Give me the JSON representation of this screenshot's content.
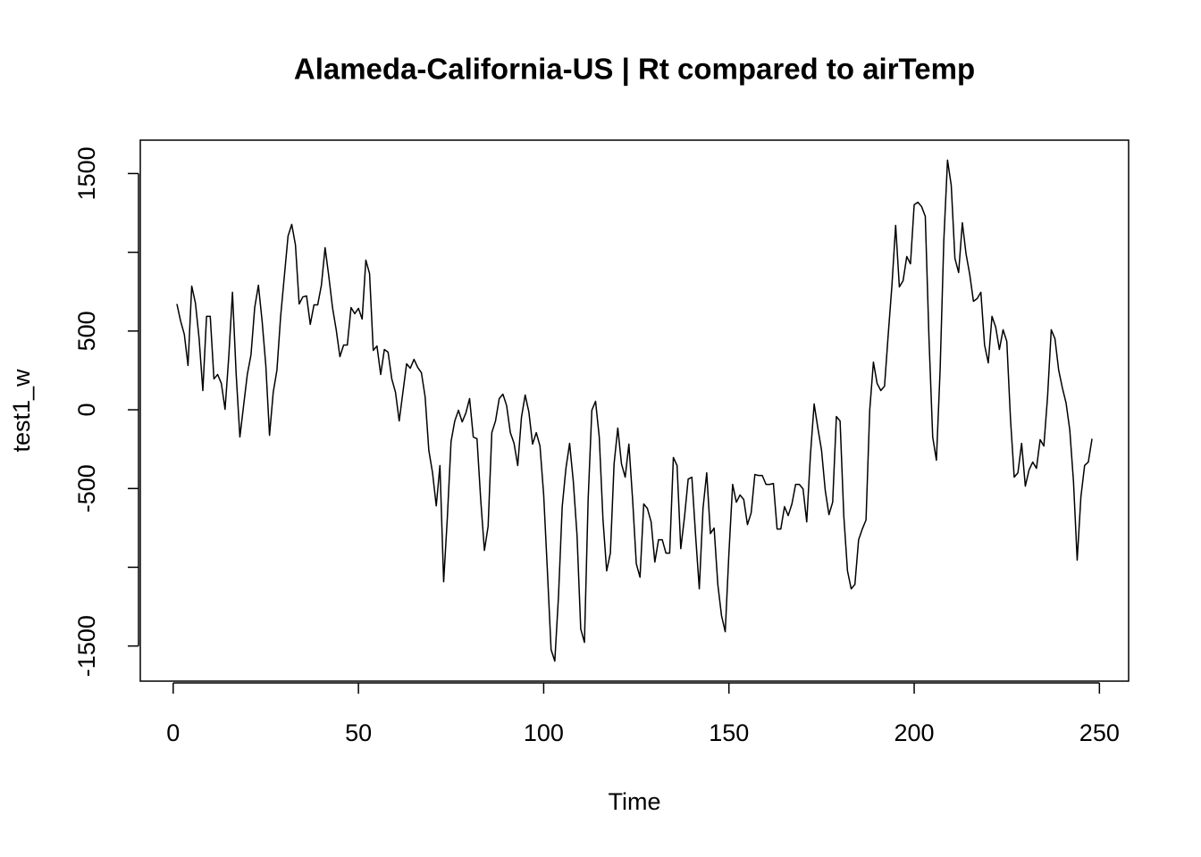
{
  "chart_data": {
    "type": "line",
    "title": "Alameda-California-US | Rt compared to airTemp",
    "x_label": "Time",
    "y_label": "test1_w",
    "xlim": [
      -8.88,
      257.88
    ],
    "ylim": [
      -1723,
      1712
    ],
    "xticks": [
      0,
      50,
      100,
      150,
      200,
      250
    ],
    "yticks": [
      -1500,
      {
        "value": -1000,
        "label": null
      },
      -500,
      0,
      500,
      {
        "value": 1000,
        "label": null
      },
      1500
    ],
    "grid": false,
    "series": [
      {
        "name": "test1_w",
        "color": "#000000",
        "x": [
          1,
          2,
          3,
          4,
          5,
          6,
          7,
          8,
          9,
          10,
          11,
          12,
          13,
          14,
          15,
          16,
          17,
          18,
          19,
          20,
          21,
          22,
          23,
          24,
          25,
          26,
          27,
          28,
          29,
          30,
          31,
          32,
          33,
          34,
          35,
          36,
          37,
          38,
          39,
          40,
          41,
          42,
          43,
          44,
          45,
          46,
          47,
          48,
          49,
          50,
          51,
          52,
          53,
          54,
          55,
          56,
          57,
          58,
          59,
          60,
          61,
          62,
          63,
          64,
          65,
          66,
          67,
          68,
          69,
          70,
          71,
          72,
          73,
          74,
          75,
          76,
          77,
          78,
          79,
          80,
          81,
          82,
          83,
          84,
          85,
          86,
          87,
          88,
          89,
          90,
          91,
          92,
          93,
          94,
          95,
          96,
          97,
          98,
          99,
          100,
          101,
          102,
          103,
          104,
          105,
          106,
          107,
          108,
          109,
          110,
          111,
          112,
          113,
          114,
          115,
          116,
          117,
          118,
          119,
          120,
          121,
          122,
          123,
          124,
          125,
          126,
          127,
          128,
          129,
          130,
          131,
          132,
          133,
          134,
          135,
          136,
          137,
          138,
          139,
          140,
          141,
          142,
          143,
          144,
          145,
          146,
          147,
          148,
          149,
          150,
          151,
          152,
          153,
          154,
          155,
          156,
          157,
          158,
          159,
          160,
          161,
          162,
          163,
          164,
          165,
          166,
          167,
          168,
          169,
          170,
          171,
          172,
          173,
          174,
          175,
          176,
          177,
          178,
          179,
          180,
          181,
          182,
          183,
          184,
          185,
          186,
          187,
          188,
          189,
          190,
          191,
          192,
          193,
          194,
          195,
          196,
          197,
          198,
          199,
          200,
          201,
          202,
          203,
          204,
          205,
          206,
          207,
          208,
          209,
          210,
          211,
          212,
          213,
          214,
          215,
          216,
          217,
          218,
          219,
          220,
          221,
          222,
          223,
          224,
          225,
          226,
          227,
          228,
          229,
          230,
          231,
          232,
          233,
          234,
          235,
          236,
          237,
          238,
          239,
          240,
          241,
          242,
          243,
          244,
          245,
          246,
          247,
          248
        ],
        "values": [
          672,
          564,
          479,
          281,
          785,
          678,
          451,
          122,
          593,
          593,
          196,
          224,
          167,
          3,
          337,
          746,
          224,
          -173,
          26,
          224,
          349,
          649,
          791,
          564,
          281,
          -162,
          111,
          252,
          593,
          848,
          1103,
          1177,
          1046,
          672,
          717,
          723,
          542,
          666,
          666,
          791,
          1029,
          848,
          649,
          508,
          337,
          411,
          411,
          649,
          610,
          644,
          576,
          950,
          865,
          377,
          405,
          224,
          383,
          366,
          196,
          111,
          -71,
          111,
          292,
          264,
          320,
          269,
          235,
          82,
          -258,
          -400,
          -610,
          -354,
          -1092,
          -683,
          -201,
          -71,
          -3,
          -77,
          -20,
          71,
          -173,
          -184,
          -570,
          -893,
          -740,
          -145,
          -71,
          71,
          99,
          26,
          -145,
          -213,
          -354,
          -48,
          94,
          -14,
          -218,
          -145,
          -230,
          -541,
          -1023,
          -1523,
          -1596,
          -1182,
          -615,
          -372,
          -213,
          -456,
          -797,
          -1392,
          -1477,
          -570,
          -3,
          54,
          -173,
          -695,
          -1023,
          -910,
          -343,
          -116,
          -343,
          -428,
          -218,
          -570,
          -978,
          -1063,
          -598,
          -627,
          -712,
          -967,
          -825,
          -825,
          -910,
          -910,
          -303,
          -354,
          -882,
          -683,
          -440,
          -428,
          -797,
          -1137,
          -627,
          -400,
          -786,
          -751,
          -1109,
          -1307,
          -1409,
          -910,
          -474,
          -587,
          -541,
          -570,
          -729,
          -655,
          -411,
          -417,
          -417,
          -474,
          -474,
          -468,
          -757,
          -757,
          -615,
          -672,
          -598,
          -474,
          -474,
          -502,
          -712,
          -286,
          37,
          -116,
          -258,
          -513,
          -666,
          -587,
          -43,
          -71,
          -672,
          -1023,
          -1137,
          -1109,
          -825,
          -757,
          -700,
          -3,
          303,
          167,
          122,
          150,
          479,
          791,
          1171,
          780,
          819,
          973,
          927,
          1302,
          1318,
          1290,
          1228,
          451,
          -173,
          -320,
          252,
          1075,
          1585,
          1426,
          961,
          871,
          1188,
          990,
          859,
          689,
          706,
          746,
          411,
          298,
          593,
          525,
          383,
          508,
          434,
          -60,
          -428,
          -400,
          -213,
          -485,
          -383,
          -332,
          -372,
          -190,
          -230,
          82,
          508,
          451,
          252,
          139,
          43,
          -128,
          -456,
          -955,
          -553,
          -354,
          -332,
          -184
        ]
      }
    ]
  }
}
